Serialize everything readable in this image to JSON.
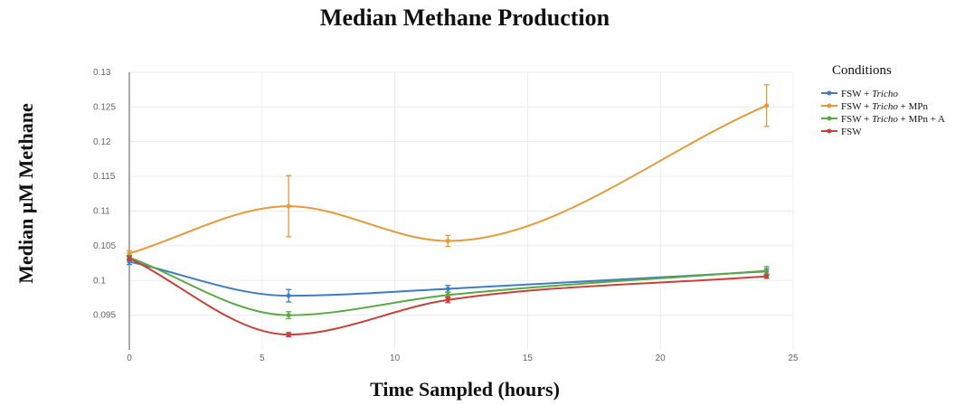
{
  "chart_data": {
    "type": "line",
    "title": "Median Methane Production",
    "xlabel": "Time Sampled (hours)",
    "ylabel": "Median μM Methane",
    "xlim": [
      0,
      25
    ],
    "ylim": [
      0.09,
      0.13
    ],
    "xticks": [
      0,
      5,
      10,
      15,
      20,
      25
    ],
    "yticks": [
      0.095,
      0.1,
      0.105,
      0.11,
      0.115,
      0.12,
      0.125,
      0.13
    ],
    "ytick_labels": [
      "0.095",
      "0.1",
      "0.105",
      "0.11",
      "0.115",
      "0.12",
      "0.125",
      "0.13"
    ],
    "grid": true,
    "legend_title": "Conditions",
    "legend_position": "top-right",
    "x": [
      0,
      6,
      12,
      24
    ],
    "series": [
      {
        "name": "FSW + Tricho",
        "name_parts": [
          {
            "text": "FSW + ",
            "italic": false
          },
          {
            "text": "Tricho",
            "italic": true
          }
        ],
        "color": "#3e7dbf",
        "values": [
          0.1027,
          0.0978,
          0.0988,
          0.1013
        ],
        "errors": [
          0.0004,
          0.0009,
          0.0005,
          0.0004
        ]
      },
      {
        "name": "FSW + Tricho + MPn",
        "name_parts": [
          {
            "text": "FSW + ",
            "italic": false
          },
          {
            "text": "Tricho",
            "italic": true
          },
          {
            "text": " + MPn",
            "italic": false
          }
        ],
        "color": "#e69a3a",
        "values": [
          0.1039,
          0.1107,
          0.1057,
          0.1252
        ],
        "errors": [
          0.0004,
          0.0044,
          0.0008,
          0.003
        ]
      },
      {
        "name": "FSW + Tricho + MPn + A",
        "name_parts": [
          {
            "text": "FSW + ",
            "italic": false
          },
          {
            "text": "Tricho",
            "italic": true
          },
          {
            "text": " + MPn + A",
            "italic": false
          }
        ],
        "color": "#5aa843",
        "values": [
          0.1033,
          0.095,
          0.0979,
          0.1014
        ],
        "errors": [
          0.0003,
          0.0005,
          0.0004,
          0.0006
        ]
      },
      {
        "name": "FSW",
        "name_parts": [
          {
            "text": "FSW",
            "italic": false
          }
        ],
        "color": "#c9413b",
        "values": [
          0.1032,
          0.0922,
          0.0972,
          0.1006
        ],
        "errors": [
          0.0003,
          0.0003,
          0.0004,
          0.0003
        ]
      }
    ]
  }
}
